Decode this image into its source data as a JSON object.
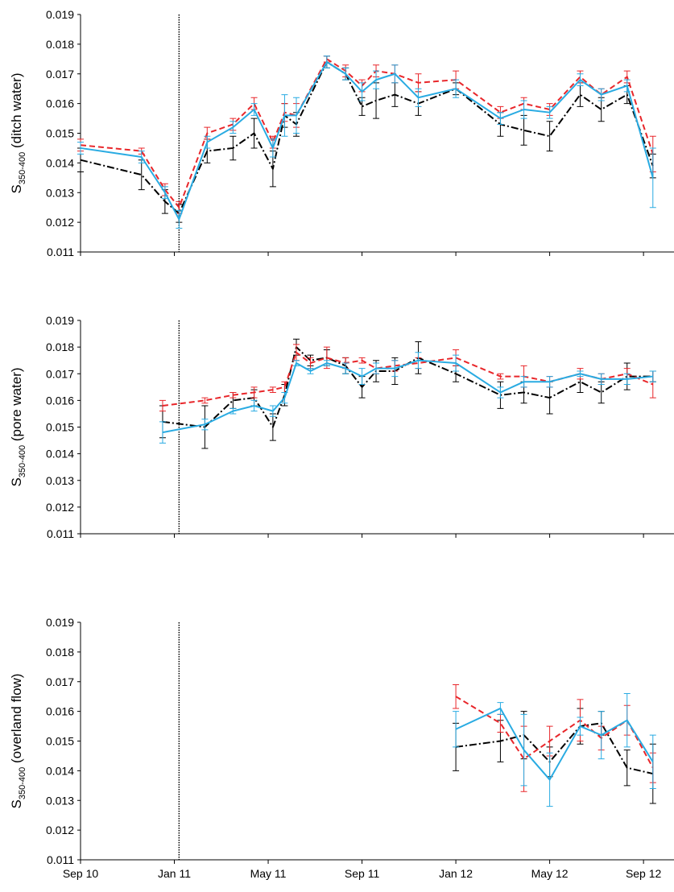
{
  "chart_data": [
    {
      "type": "line",
      "ylabel": {
        "symbol": "S",
        "subscript": "350-400",
        "text": " (ditch water)"
      },
      "x": [
        0,
        2.6,
        3.6,
        4.2,
        5.4,
        6.5,
        7.4,
        8.2,
        8.7,
        9.2,
        10.5,
        11.3,
        12.0,
        12.6,
        13.4,
        14.4,
        16.0,
        17.9,
        18.9,
        20.0,
        21.3,
        22.2,
        23.3,
        24.4
      ],
      "series": [
        {
          "color": "#000000",
          "dash": "dashdot",
          "values": [
            0.0141,
            0.0136,
            0.0127,
            0.0123,
            0.0144,
            0.0145,
            0.015,
            0.0138,
            0.0156,
            0.0153,
            0.0174,
            0.017,
            0.0159,
            0.0161,
            0.0163,
            0.016,
            0.0165,
            0.0153,
            0.0151,
            0.0149,
            0.0163,
            0.0158,
            0.0163,
            0.0139
          ],
          "errors": [
            0.0004,
            0.0005,
            0.0004,
            0.0003,
            0.0004,
            0.0004,
            0.0005,
            0.0006,
            0.0004,
            0.0004,
            0.0002,
            0.0002,
            0.0003,
            0.0006,
            0.0004,
            0.0004,
            0.0002,
            0.0004,
            0.0005,
            0.0005,
            0.0004,
            0.0004,
            0.0003,
            0.0004
          ]
        },
        {
          "color": "#e8262a",
          "dash": "dashed",
          "values": [
            0.0146,
            0.0144,
            0.0131,
            0.0125,
            0.015,
            0.0153,
            0.016,
            0.0147,
            0.0157,
            0.0156,
            0.0175,
            0.0171,
            0.0166,
            0.0171,
            0.017,
            0.0167,
            0.0168,
            0.0157,
            0.016,
            0.0158,
            0.0169,
            0.0163,
            0.0169,
            0.0143
          ],
          "errors": [
            0.0002,
            0.0001,
            0.0002,
            0.0002,
            0.0002,
            0.0002,
            0.0002,
            0.0002,
            0.0003,
            0.0004,
            0.0001,
            0.0002,
            0.0002,
            0.0002,
            0.0003,
            0.0003,
            0.0003,
            0.0002,
            0.0002,
            0.0002,
            0.0002,
            0.0002,
            0.0002,
            0.0006
          ]
        },
        {
          "color": "#29abe2",
          "dash": "solid",
          "values": [
            0.0145,
            0.0142,
            0.013,
            0.0121,
            0.0147,
            0.0152,
            0.0158,
            0.0145,
            0.0156,
            0.0156,
            0.0174,
            0.017,
            0.0164,
            0.0168,
            0.017,
            0.0162,
            0.0165,
            0.0155,
            0.0158,
            0.0157,
            0.0168,
            0.0163,
            0.0166,
            0.0135
          ],
          "errors": [
            0.0002,
            0.0002,
            0.0002,
            0.0003,
            0.0002,
            0.0002,
            0.0002,
            0.0003,
            0.0007,
            0.0006,
            0.0002,
            0.0002,
            0.0003,
            0.0003,
            0.0003,
            0.0003,
            0.0003,
            0.0002,
            0.0003,
            0.0002,
            0.0002,
            0.0002,
            0.0002,
            0.001
          ]
        }
      ],
      "xlim": [
        0,
        25.3
      ],
      "xticks": [
        0,
        4,
        8,
        12,
        16,
        20,
        24
      ],
      "show_xtick_labels": false,
      "ylim": [
        0.011,
        0.019
      ],
      "yticks": [
        0.011,
        0.012,
        0.013,
        0.014,
        0.015,
        0.016,
        0.017,
        0.018,
        0.019
      ],
      "vline_x": 4.2,
      "grid": false
    },
    {
      "type": "line",
      "ylabel": {
        "symbol": "S",
        "subscript": "350-400",
        "text": " (pore water)"
      },
      "x": [
        3.5,
        5.3,
        6.5,
        7.4,
        8.2,
        8.7,
        9.2,
        9.8,
        10.5,
        11.3,
        12.0,
        12.6,
        13.4,
        14.4,
        16.0,
        17.9,
        18.9,
        20.0,
        21.3,
        22.2,
        23.3,
        24.4
      ],
      "series": [
        {
          "color": "#000000",
          "dash": "dashdot",
          "values": [
            0.0152,
            0.015,
            0.016,
            0.0161,
            0.015,
            0.0162,
            0.018,
            0.0175,
            0.0176,
            0.0173,
            0.0165,
            0.0171,
            0.0171,
            0.0176,
            0.017,
            0.0162,
            0.0163,
            0.0161,
            0.0167,
            0.0163,
            0.0169,
            0.0169
          ],
          "errors": [
            0.0006,
            0.0008,
            0.0003,
            0.0003,
            0.0005,
            0.0004,
            0.0003,
            0.0002,
            0.0003,
            0.0003,
            0.0004,
            0.0004,
            0.0005,
            0.0006,
            0.0003,
            0.0005,
            0.0004,
            0.0006,
            0.0004,
            0.0004,
            0.0005,
            0.0002
          ]
        },
        {
          "color": "#e8262a",
          "dash": "dashed",
          "values": [
            0.0158,
            0.016,
            0.0162,
            0.0163,
            0.0164,
            0.0165,
            0.0178,
            0.0174,
            0.0176,
            0.0174,
            0.0175,
            0.0172,
            0.0173,
            0.0174,
            0.0176,
            0.0169,
            0.0169,
            0.0167,
            0.017,
            0.0168,
            0.017,
            0.0166
          ],
          "errors": [
            0.0002,
            0.0001,
            0.0001,
            0.0002,
            0.0001,
            0.0002,
            0.0003,
            0.0002,
            0.0004,
            0.0002,
            0.0001,
            0.0002,
            0.0002,
            0.0002,
            0.0003,
            0.0001,
            0.0004,
            0.0002,
            0.0002,
            0.0002,
            0.0002,
            0.0005
          ]
        },
        {
          "color": "#29abe2",
          "dash": "solid",
          "values": [
            0.0148,
            0.0151,
            0.0156,
            0.0158,
            0.0156,
            0.0161,
            0.0174,
            0.0171,
            0.0174,
            0.0172,
            0.0169,
            0.0172,
            0.0172,
            0.0175,
            0.0174,
            0.0163,
            0.0167,
            0.0167,
            0.017,
            0.0168,
            0.0168,
            0.0169
          ],
          "errors": [
            0.0004,
            0.0002,
            0.0001,
            0.0002,
            0.0002,
            0.0002,
            0.0001,
            0.0001,
            0.0001,
            0.0002,
            0.0003,
            0.0002,
            0.0003,
            0.0003,
            0.0003,
            0.0002,
            0.0002,
            0.0002,
            0.0001,
            0.0002,
            0.0002,
            0.0002
          ]
        }
      ],
      "xlim": [
        0,
        25.3
      ],
      "xticks": [
        0,
        4,
        8,
        12,
        16,
        20,
        24
      ],
      "show_xtick_labels": false,
      "ylim": [
        0.011,
        0.019
      ],
      "yticks": [
        0.011,
        0.012,
        0.013,
        0.014,
        0.015,
        0.016,
        0.017,
        0.018,
        0.019
      ],
      "vline_x": 4.2,
      "grid": false
    },
    {
      "type": "line",
      "ylabel": {
        "symbol": "S",
        "subscript": "350-400",
        "text": " (overland flow)"
      },
      "x": [
        16.0,
        17.9,
        18.9,
        20.0,
        21.3,
        22.2,
        23.3,
        24.4
      ],
      "series": [
        {
          "color": "#000000",
          "dash": "dashdot",
          "values": [
            0.0148,
            0.015,
            0.0152,
            0.0143,
            0.0155,
            0.0156,
            0.0141,
            0.0139
          ],
          "errors": [
            0.0008,
            0.0007,
            0.0008,
            0.0005,
            0.0006,
            0.0004,
            0.0006,
            0.001
          ]
        },
        {
          "color": "#e8262a",
          "dash": "dashed",
          "values": [
            0.0165,
            0.0156,
            0.0144,
            0.015,
            0.0157,
            0.0151,
            0.0157,
            0.0141
          ],
          "errors": [
            0.0004,
            0.0003,
            0.0011,
            0.0005,
            0.0007,
            0.0004,
            0.0005,
            0.0005
          ]
        },
        {
          "color": "#29abe2",
          "dash": "solid",
          "values": [
            0.0154,
            0.0161,
            0.0147,
            0.0137,
            0.0155,
            0.0152,
            0.0157,
            0.0143
          ],
          "errors": [
            0.0006,
            0.0002,
            0.0012,
            0.0009,
            0.0003,
            0.0008,
            0.0009,
            0.0009
          ]
        }
      ],
      "xlim": [
        0,
        25.3
      ],
      "xticks": [
        {
          "value": 0,
          "label": "Sep 10"
        },
        {
          "value": 4,
          "label": "Jan 11"
        },
        {
          "value": 8,
          "label": "May 11"
        },
        {
          "value": 12,
          "label": "Sep 11"
        },
        {
          "value": 16,
          "label": "Jan 12"
        },
        {
          "value": 20,
          "label": "May 12"
        },
        {
          "value": 24,
          "label": "Sep 12"
        }
      ],
      "show_xtick_labels": true,
      "ylim": [
        0.011,
        0.019
      ],
      "yticks": [
        0.011,
        0.012,
        0.013,
        0.014,
        0.015,
        0.016,
        0.017,
        0.018,
        0.019
      ],
      "vline_x": 4.2,
      "grid": false
    }
  ]
}
